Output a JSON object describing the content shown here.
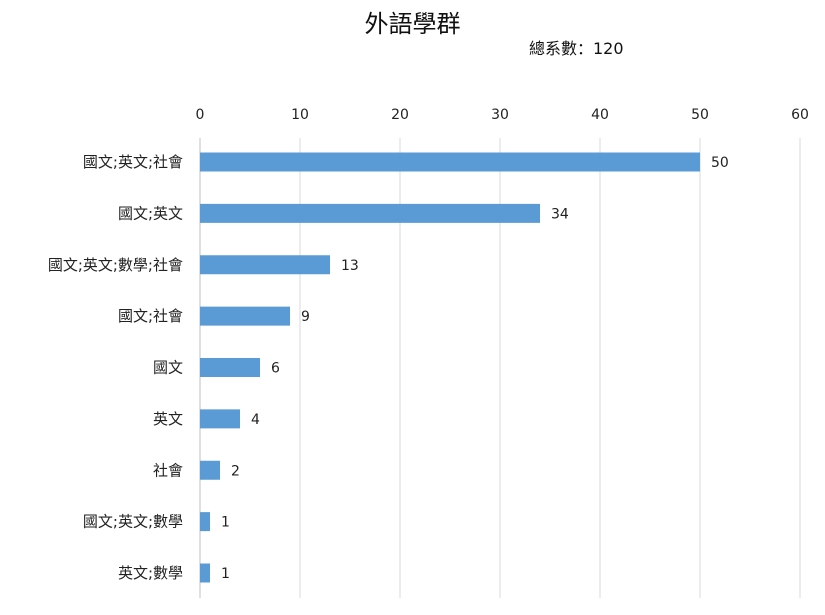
{
  "chart_data": {
    "type": "bar",
    "orientation": "horizontal",
    "title": "外語學群",
    "subtitle": "總系數：120",
    "categories": [
      "國文;英文;社會",
      "國文;英文",
      "國文;英文;數學;社會",
      "國文;社會",
      "國文",
      "英文",
      "社會",
      "國文;英文;數學",
      "英文;數學"
    ],
    "values": [
      50,
      34,
      13,
      9,
      6,
      4,
      2,
      1,
      1
    ],
    "xlim": [
      0,
      60
    ],
    "x_ticks": [
      0,
      10,
      20,
      30,
      40,
      50,
      60
    ],
    "axis_position": "top",
    "grid": true,
    "data_labels": true,
    "bar_color": "#5B9BD5",
    "grid_color": "#D9D9D9"
  }
}
